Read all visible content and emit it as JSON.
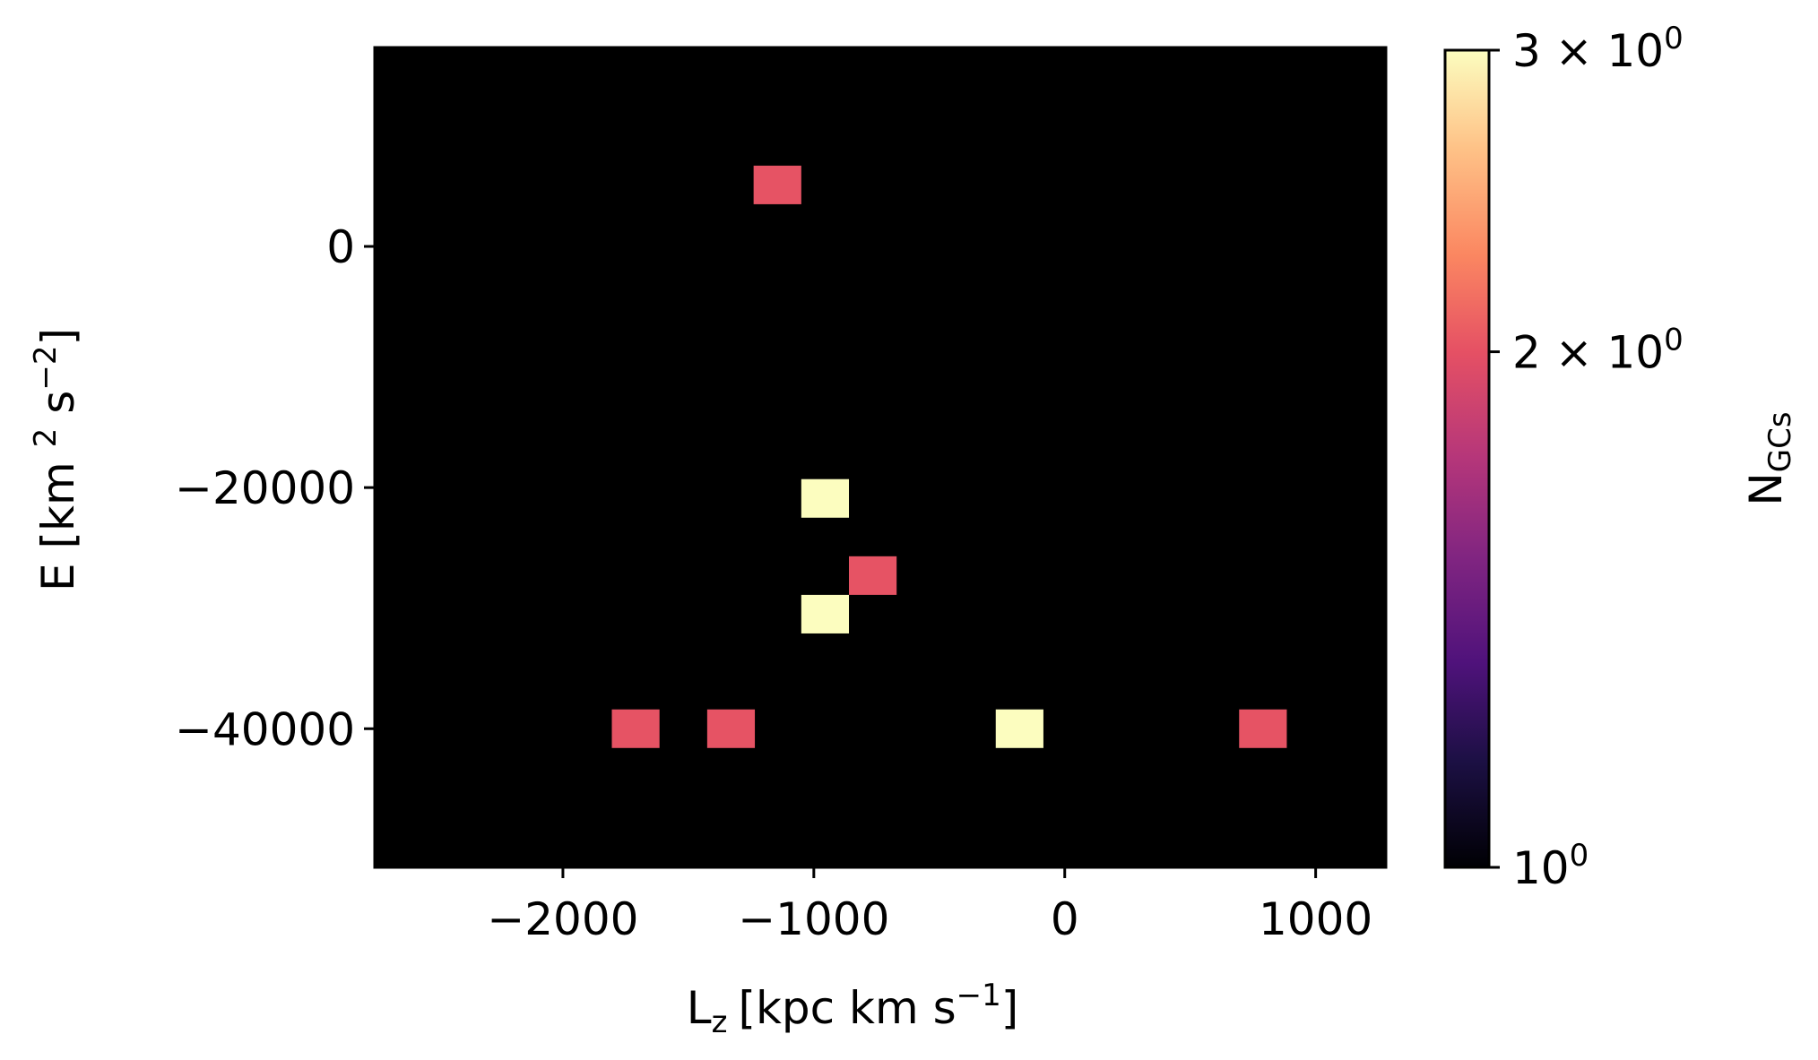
{
  "chart_data": {
    "type": "heatmap",
    "xlabel": "L",
    "xlabel_sub": "z",
    "xlabel_unit": "[kpc km s",
    "xlabel_exp": "−1",
    "xlabel_close": "]",
    "ylabel": "E [km",
    "ylabel_sup1": "2",
    "ylabel_mid": "s",
    "ylabel_sup2": "−2",
    "ylabel_close": "]",
    "xlim": [
      -2750,
      1280
    ],
    "ylim": [
      -51500,
      16500
    ],
    "xticks": [
      {
        "value": -2000,
        "label": "−2000"
      },
      {
        "value": -1000,
        "label": "−1000"
      },
      {
        "value": 0,
        "label": "0"
      },
      {
        "value": 1000,
        "label": "1000"
      }
    ],
    "yticks": [
      {
        "value": 0,
        "label": "0"
      },
      {
        "value": -20000,
        "label": "−20000"
      },
      {
        "value": -40000,
        "label": "−40000"
      }
    ],
    "bin_size": {
      "x": 190,
      "y": 3200
    },
    "background_color": "#000000",
    "cells": [
      {
        "x": -1145,
        "y": 5100,
        "count": 2
      },
      {
        "x": -955,
        "y": -20900,
        "count": 3
      },
      {
        "x": -765,
        "y": -27300,
        "count": 2
      },
      {
        "x": -955,
        "y": -30500,
        "count": 3
      },
      {
        "x": -1710,
        "y": -40000,
        "count": 2
      },
      {
        "x": -1330,
        "y": -40000,
        "count": 2
      },
      {
        "x": -180,
        "y": -40000,
        "count": 3
      },
      {
        "x": 790,
        "y": -40000,
        "count": 2
      }
    ],
    "colorbar": {
      "colormap": "magma",
      "scale": "log",
      "range": [
        1,
        3
      ],
      "label": "N",
      "label_sub": "GCs",
      "ticks": [
        {
          "value": 1,
          "base": "10",
          "exp": "0"
        },
        {
          "value": 2,
          "base": "2 × 10",
          "exp": "0"
        },
        {
          "value": 3,
          "base": "3 × 10",
          "exp": "0"
        }
      ]
    }
  }
}
